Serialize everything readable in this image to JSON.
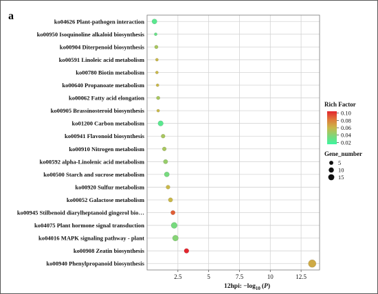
{
  "panel_label": "a",
  "chart_data": {
    "type": "scatter",
    "title": "",
    "xlabel_main": "12hpi: −log",
    "xlabel_sub": "10",
    "xlabel_paren": "(",
    "xlabel_p": "P",
    "xlabel_close": ")",
    "xlim": [
      0,
      14
    ],
    "xticks": [
      2.5,
      5,
      7.5,
      10,
      12.5
    ],
    "xtick_labels": [
      "2.5",
      "5",
      "7.5",
      "10",
      "12.5"
    ],
    "grid": true,
    "categories": [
      "ko04626 Plant-pathogen interaction",
      "ko00950 Isoquinoline alkaloid biosynthesis",
      "ko00904 Diterpenoid biosynthesis",
      "ko00591 Linoleic acid metabolism",
      "ko00780 Biotin metabolism",
      "ko00640 Propanoate metabolism",
      "ko00062 Fatty acid elongation",
      "ko00905 Brassinosteroid biosynthesis",
      "ko01200 Carbon metabolism",
      "ko00941 Flavonoid biosynthesis",
      "ko00910 Nitrogen metabolism",
      "ko00592 alpha-Linolenic acid metabolism",
      "ko00500 Starch and sucrose metabolism",
      "ko00920 Sulfur metabolism",
      "ko00052 Galactose metabolism",
      "ko00945 Stilbenoid diarylheptanoid gingerol bio…",
      "ko04075 Plant hormone signal transduction",
      "ko04016 MAPK signaling pathway - plant",
      "ko00908 Zeatin biosynthesis",
      "ko00940 Phenylpropanoid biosynthesis"
    ],
    "points": [
      {
        "x": 0.6,
        "rich": 0.025,
        "gene": 6
      },
      {
        "x": 0.7,
        "rich": 0.03,
        "gene": 1
      },
      {
        "x": 0.75,
        "rich": 0.05,
        "gene": 2
      },
      {
        "x": 0.8,
        "rich": 0.06,
        "gene": 1
      },
      {
        "x": 0.8,
        "rich": 0.06,
        "gene": 1
      },
      {
        "x": 0.85,
        "rich": 0.06,
        "gene": 1
      },
      {
        "x": 0.9,
        "rich": 0.05,
        "gene": 2
      },
      {
        "x": 0.9,
        "rich": 0.06,
        "gene": 1
      },
      {
        "x": 1.1,
        "rich": 0.025,
        "gene": 7
      },
      {
        "x": 1.3,
        "rich": 0.05,
        "gene": 3
      },
      {
        "x": 1.4,
        "rich": 0.05,
        "gene": 3
      },
      {
        "x": 1.5,
        "rich": 0.045,
        "gene": 4
      },
      {
        "x": 1.6,
        "rich": 0.035,
        "gene": 6
      },
      {
        "x": 1.7,
        "rich": 0.06,
        "gene": 3
      },
      {
        "x": 1.9,
        "rich": 0.06,
        "gene": 4
      },
      {
        "x": 2.1,
        "rich": 0.09,
        "gene": 4
      },
      {
        "x": 2.2,
        "rich": 0.035,
        "gene": 10
      },
      {
        "x": 2.3,
        "rich": 0.04,
        "gene": 9
      },
      {
        "x": 3.2,
        "rich": 0.105,
        "gene": 5
      },
      {
        "x": 13.4,
        "rich": 0.065,
        "gene": 18
      }
    ],
    "color_legend": {
      "title": "Rich Factor",
      "ticks": [
        0.1,
        0.08,
        0.06,
        0.04,
        0.02
      ],
      "tick_labels": [
        "0.10",
        "0.08",
        "0.06",
        "0.04",
        "0.02"
      ],
      "range": [
        0.015,
        0.105
      ],
      "colors": [
        "#3df5a0",
        "#7ed77a",
        "#c9b84a",
        "#e07a3a",
        "#e3262e"
      ]
    },
    "size_legend": {
      "title": "Gene_number",
      "values": [
        5,
        10,
        15
      ],
      "labels": [
        "5",
        "10",
        "15"
      ]
    }
  }
}
